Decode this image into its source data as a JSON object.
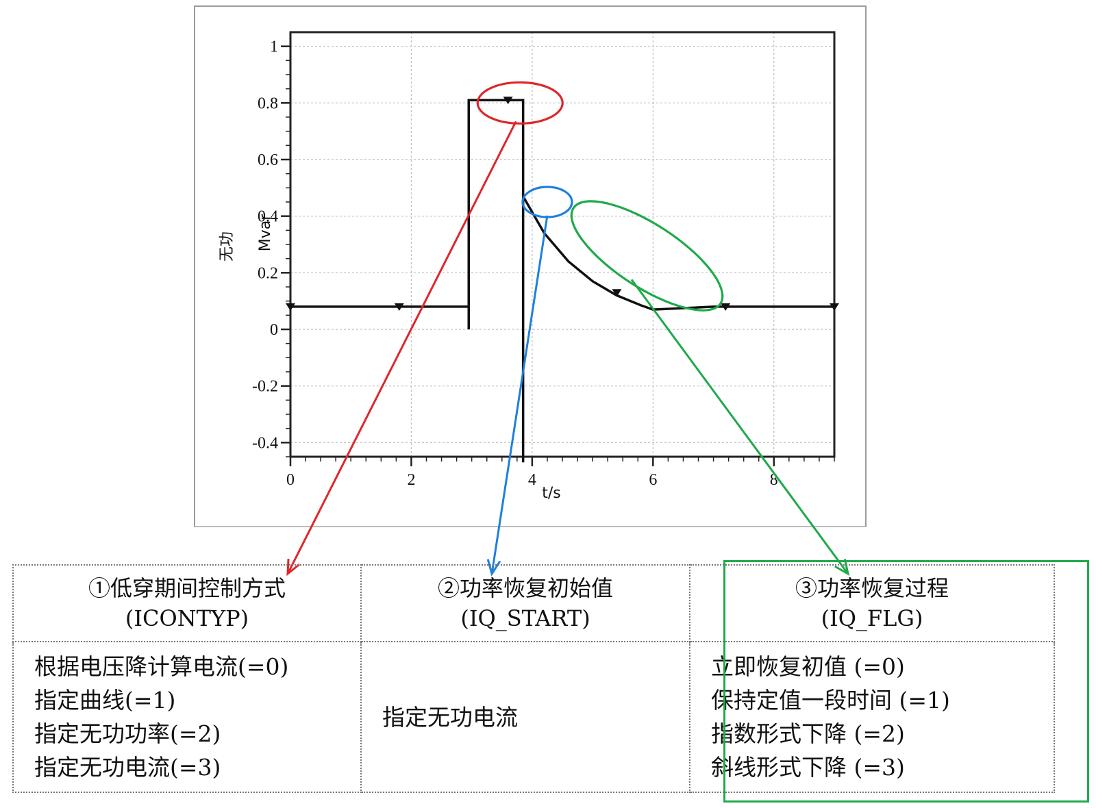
{
  "chart_data": {
    "type": "line",
    "xlabel": "t/s",
    "ylabel": "无功",
    "ylabel_unit": "Mvar",
    "xlim": [
      0,
      9
    ],
    "ylim": [
      -0.45,
      1.05
    ],
    "x_ticks": [
      0,
      2,
      4,
      6,
      8
    ],
    "y_ticks": [
      -0.4,
      -0.2,
      0,
      0.2,
      0.4,
      0.6,
      0.8,
      1
    ],
    "x_tick_labels": [
      "0",
      "2",
      "4",
      "6",
      "8"
    ],
    "y_tick_labels": [
      "-0.4",
      "-0.2",
      "0",
      "0.2",
      "0.4",
      "0.6",
      "0.8",
      "1"
    ],
    "grid": true,
    "series": [
      {
        "color": "#111111",
        "x": [
          0,
          2.95,
          2.95,
          2.95,
          3.85,
          3.85,
          3.85,
          3.85,
          4.2,
          4.6,
          5.0,
          5.4,
          5.8,
          6.0,
          6.5,
          7.0,
          9.0
        ],
        "y": [
          0.08,
          0.08,
          0.0,
          0.81,
          0.81,
          0.08,
          -0.47,
          0.47,
          0.34,
          0.24,
          0.17,
          0.12,
          0.085,
          0.07,
          0.075,
          0.08,
          0.08
        ],
        "markers_x": [
          0,
          1.8,
          3.6,
          5.4,
          7.2,
          9.0
        ],
        "markers_y": [
          0.08,
          0.08,
          0.81,
          0.13,
          0.08,
          0.08
        ]
      }
    ],
    "annotations": [
      {
        "name": "red-ellipse",
        "color": "#e0262a",
        "center": [
          3.8,
          0.8
        ],
        "target_column": 1
      },
      {
        "name": "blue-ellipse",
        "color": "#1f7fdc",
        "center": [
          4.25,
          0.45
        ],
        "target_column": 2
      },
      {
        "name": "green-ellipse",
        "color": "#1eaa4a",
        "center": [
          5.9,
          0.26
        ],
        "target_column": 3
      }
    ]
  },
  "table": {
    "col1": {
      "head_line1": "①低穿期间控制方式",
      "head_line2": "(ICONTYP)",
      "lines": [
        "根据电压降计算电流(=0)",
        "指定曲线(=1)",
        "指定无功功率(=2)",
        "指定无功电流(=3)"
      ]
    },
    "col2": {
      "head_line1": "②功率恢复初始值",
      "head_line2": "(IQ_START)",
      "body": "指定无功电流"
    },
    "col3": {
      "head_line1": "③功率恢复过程",
      "head_line2": "(IQ_FLG)",
      "lines": [
        "立即恢复初值 (=0)",
        "保持定值一段时间 (=1)",
        "指数形式下降 (=2)",
        "斜线形式下降 (=3)"
      ]
    }
  },
  "colors": {
    "red": "#e0262a",
    "blue": "#1f7fdc",
    "green": "#1eaa4a",
    "line": "#111111",
    "grid": "#bdbdbd"
  }
}
